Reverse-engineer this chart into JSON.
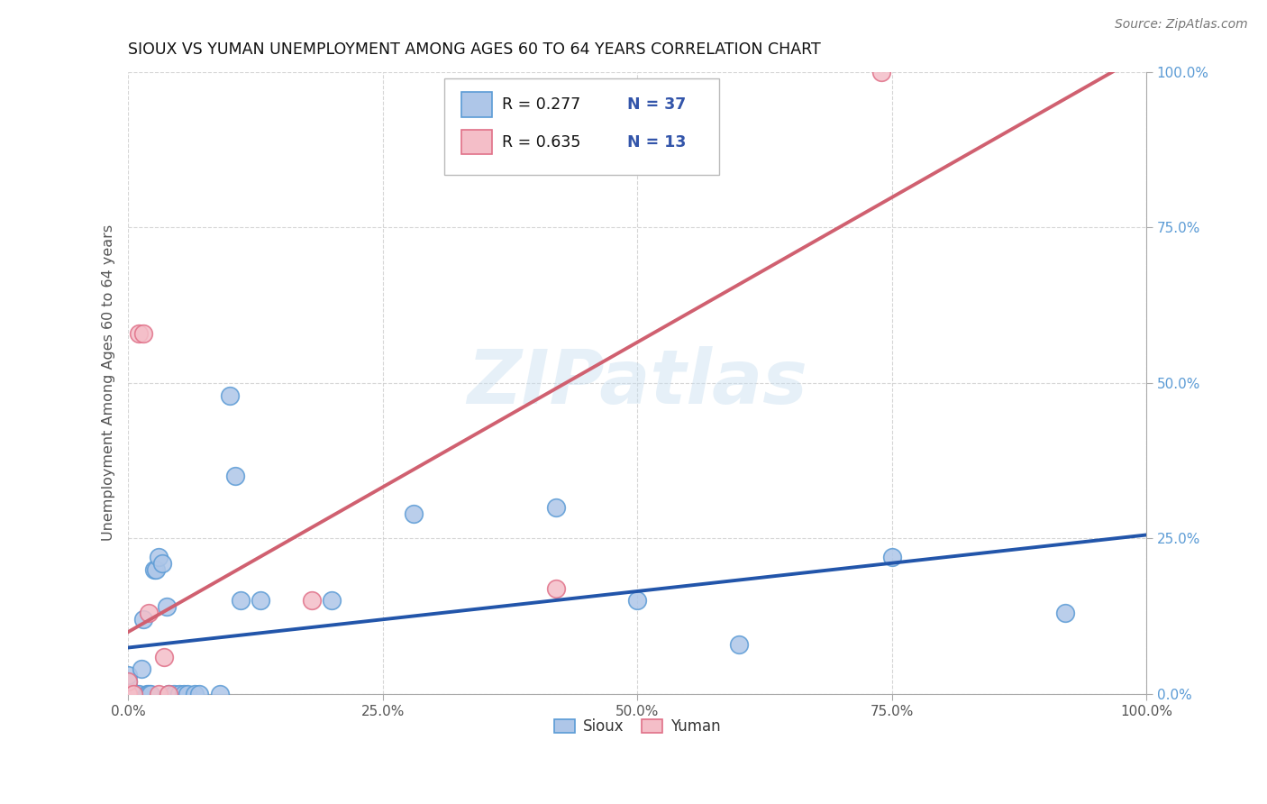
{
  "title": "SIOUX VS YUMAN UNEMPLOYMENT AMONG AGES 60 TO 64 YEARS CORRELATION CHART",
  "source": "Source: ZipAtlas.com",
  "ylabel": "Unemployment Among Ages 60 to 64 years",
  "xlim": [
    0.0,
    1.0
  ],
  "ylim": [
    0.0,
    1.0
  ],
  "xticks": [
    0.0,
    0.25,
    0.5,
    0.75,
    1.0
  ],
  "xticklabels": [
    "0.0%",
    "25.0%",
    "50.0%",
    "75.0%",
    "100.0%"
  ],
  "yticks": [
    0.0,
    0.25,
    0.5,
    0.75,
    1.0
  ],
  "yticklabels": [
    "0.0%",
    "25.0%",
    "50.0%",
    "75.0%",
    "100.0%"
  ],
  "sioux_color": "#aec6e8",
  "sioux_edge_color": "#5b9bd5",
  "yuman_color": "#f4bec8",
  "yuman_edge_color": "#e07088",
  "trend_sioux_color": "#2255aa",
  "trend_yuman_color": "#d06070",
  "legend_r_sioux": "R = 0.277",
  "legend_n_sioux": "N = 37",
  "legend_r_yuman": "R = 0.635",
  "legend_n_yuman": "N = 13",
  "legend_text_color": "#3355aa",
  "watermark": "ZIPatlas",
  "sioux_x": [
    0.0,
    0.0,
    0.0,
    0.0,
    0.005,
    0.007,
    0.008,
    0.01,
    0.013,
    0.015,
    0.018,
    0.02,
    0.022,
    0.025,
    0.027,
    0.03,
    0.033,
    0.038,
    0.04,
    0.045,
    0.05,
    0.055,
    0.058,
    0.065,
    0.07,
    0.09,
    0.1,
    0.105,
    0.11,
    0.13,
    0.2,
    0.28,
    0.42,
    0.5,
    0.6,
    0.75,
    0.92
  ],
  "sioux_y": [
    0.0,
    0.01,
    0.02,
    0.03,
    0.0,
    0.0,
    0.0,
    0.0,
    0.04,
    0.12,
    0.0,
    0.0,
    0.0,
    0.2,
    0.2,
    0.22,
    0.21,
    0.14,
    0.0,
    0.0,
    0.0,
    0.0,
    0.0,
    0.0,
    0.0,
    0.0,
    0.48,
    0.35,
    0.15,
    0.15,
    0.15,
    0.29,
    0.3,
    0.15,
    0.08,
    0.22,
    0.13
  ],
  "yuman_x": [
    0.0,
    0.0,
    0.0,
    0.005,
    0.01,
    0.015,
    0.02,
    0.03,
    0.035,
    0.04,
    0.18,
    0.42,
    0.74
  ],
  "yuman_y": [
    0.0,
    0.0,
    0.02,
    0.0,
    0.58,
    0.58,
    0.13,
    0.0,
    0.06,
    0.0,
    0.15,
    0.17,
    1.0
  ]
}
